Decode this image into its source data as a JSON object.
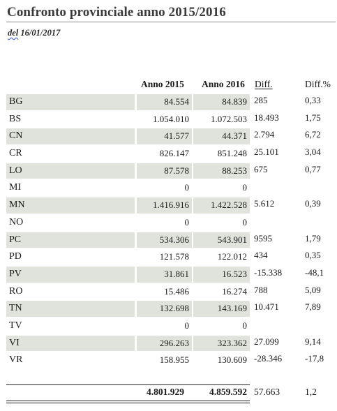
{
  "title": "Confronto provinciale anno 2015/2016",
  "subtitle": {
    "prefix": "del",
    "date": "16/01/2017"
  },
  "headers": {
    "anno2015": "Anno 2015",
    "anno2016": "Anno 2016",
    "diff": "Diff.",
    "diff_pct": "Diff.%"
  },
  "rows": [
    {
      "code": "BG",
      "anno2015": "84.554",
      "anno2016": "84.839",
      "diff": "285",
      "diff_pct": "0,33"
    },
    {
      "code": "BS",
      "anno2015": "1.054.010",
      "anno2016": "1.072.503",
      "diff": "18.493",
      "diff_pct": "1,75"
    },
    {
      "code": "CN",
      "anno2015": "41.577",
      "anno2016": "44.371",
      "diff": "2.794",
      "diff_pct": "6,72"
    },
    {
      "code": "CR",
      "anno2015": "826.147",
      "anno2016": "851.248",
      "diff": "25.101",
      "diff_pct": "3,04"
    },
    {
      "code": "LO",
      "anno2015": "87.578",
      "anno2016": "88.253",
      "diff": "675",
      "diff_pct": "0,77"
    },
    {
      "code": "MI",
      "anno2015": "0",
      "anno2016": "0",
      "diff": "",
      "diff_pct": ""
    },
    {
      "code": "MN",
      "anno2015": "1.416.916",
      "anno2016": "1.422.528",
      "diff": "5.612",
      "diff_pct": "0,39"
    },
    {
      "code": "NO",
      "anno2015": "0",
      "anno2016": "0",
      "diff": "",
      "diff_pct": ""
    },
    {
      "code": "PC",
      "anno2015": "534.306",
      "anno2016": "543.901",
      "diff": "9595",
      "diff_pct": "1,79"
    },
    {
      "code": "PD",
      "anno2015": "121.578",
      "anno2016": "122.012",
      "diff": "434",
      "diff_pct": "0,35"
    },
    {
      "code": "PV",
      "anno2015": "31.861",
      "anno2016": "16.523",
      "diff": "-15.338",
      "diff_pct": "-48,1"
    },
    {
      "code": "RO",
      "anno2015": "15.486",
      "anno2016": "16.274",
      "diff": "788",
      "diff_pct": "5,09"
    },
    {
      "code": "TN",
      "anno2015": "132.698",
      "anno2016": "143.169",
      "diff": "10.471",
      "diff_pct": "7,89"
    },
    {
      "code": "TV",
      "anno2015": "0",
      "anno2016": "0",
      "diff": "",
      "diff_pct": ""
    },
    {
      "code": "VI",
      "anno2015": "296.263",
      "anno2016": "323.362",
      "diff": "27.099",
      "diff_pct": "9,14"
    },
    {
      "code": "VR",
      "anno2015": "158.955",
      "anno2016": "130.609",
      "diff": "-28.346",
      "diff_pct": "-17,8"
    }
  ],
  "totals": {
    "anno2015": "4.801.929",
    "anno2016": "4.859.592",
    "diff": "57.663",
    "diff_pct": "1,2"
  },
  "colors": {
    "row_shade": "#dfe3db"
  }
}
